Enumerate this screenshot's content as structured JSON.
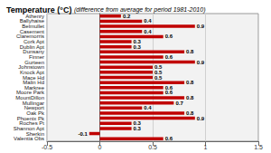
{
  "chart_data": {
    "type": "bar",
    "orientation": "horizontal",
    "title": "Temperature (°C)",
    "subtitle": "(difference from average for period 1981-2010)",
    "categories": [
      "Athenry",
      "Ballyhaise",
      "Belmullet",
      "Casement",
      "Claremorris",
      "Cork Apt",
      "Dublin Apt",
      "Dunsany",
      "Finner",
      "Gurteen",
      "Johnstown",
      "Knock Apt",
      "Mace Hd",
      "Malin Hd",
      "Markree",
      "Moore Park",
      "MountDillon",
      "Mullingar",
      "Newport",
      "Oak Pk",
      "Phoenix Pk",
      "Roches Pt",
      "Shannon Apt",
      "Sherkin",
      "Valentia Obs"
    ],
    "values": [
      0.2,
      0.4,
      0.9,
      0.4,
      0.6,
      0.3,
      0.3,
      0.8,
      0.6,
      0.9,
      0.5,
      0.5,
      0.5,
      0.8,
      0.6,
      0.6,
      0.8,
      0.7,
      0.4,
      0.8,
      0.9,
      0.3,
      0.3,
      -0.1,
      0.6
    ],
    "color": "#c00000",
    "xlim": [
      -0.5,
      1.5
    ],
    "xticks": [
      -0.5,
      0,
      0.5,
      1,
      1.5
    ],
    "grid": true,
    "data_labels": true
  }
}
